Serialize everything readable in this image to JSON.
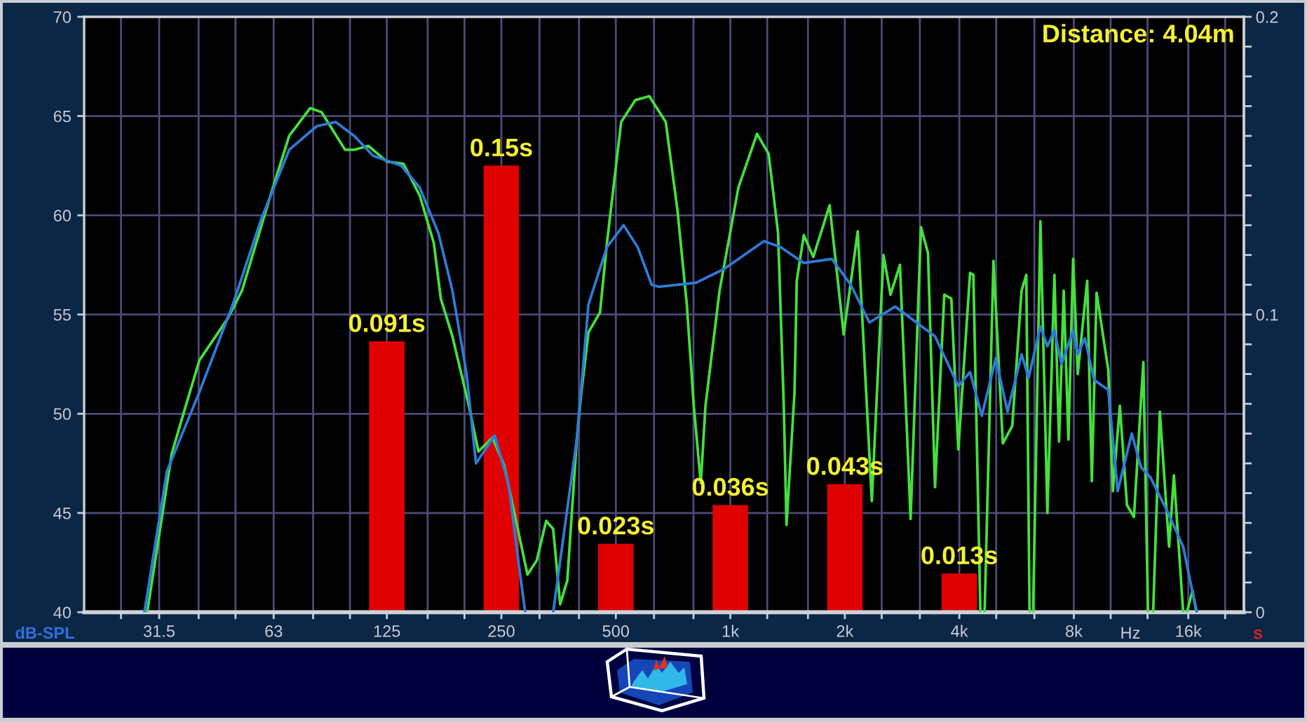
{
  "chart_data": {
    "type": "line",
    "annotations": [
      "Distance: 4.04m"
    ],
    "xlabel": "Hz",
    "ylabel": "dB-SPL",
    "y2label": "s",
    "log": "x",
    "xlim": [
      20,
      22400
    ],
    "xticks": [
      {
        "value": 25,
        "label": null
      },
      31.5,
      {
        "value": 40,
        "label": null
      },
      {
        "value": 50,
        "label": null
      },
      63,
      {
        "value": 80,
        "label": null
      },
      {
        "value": 100,
        "label": null
      },
      125,
      {
        "value": 160,
        "label": null
      },
      {
        "value": 200,
        "label": null
      },
      250,
      {
        "value": 315,
        "label": null
      },
      {
        "value": 400,
        "label": null
      },
      500,
      {
        "value": 630,
        "label": null
      },
      {
        "value": 800,
        "label": null
      },
      {
        "value": 1000,
        "label": "1k"
      },
      {
        "value": 1250,
        "label": null
      },
      {
        "value": 1600,
        "label": null
      },
      {
        "value": 2000,
        "label": "2k"
      },
      {
        "value": 2500,
        "label": null
      },
      {
        "value": 3150,
        "label": null
      },
      {
        "value": 4000,
        "label": "4k"
      },
      {
        "value": 5000,
        "label": null
      },
      {
        "value": 6300,
        "label": null
      },
      {
        "value": 8000,
        "label": "8k"
      },
      {
        "value": 10000,
        "label": null
      },
      {
        "value": 12500,
        "label": null
      },
      {
        "value": 16000,
        "label": "16k"
      },
      {
        "value": 20000,
        "label": null
      }
    ],
    "ylim": [
      40,
      70
    ],
    "yticks": [
      40,
      45,
      50,
      55,
      60,
      65,
      70
    ],
    "y2lim": [
      0,
      0.2
    ],
    "y2ticks": [
      0,
      {
        "value": 0.01,
        "label": null
      },
      {
        "value": 0.02,
        "label": null
      },
      {
        "value": 0.03,
        "label": null
      },
      {
        "value": 0.04,
        "label": null
      },
      {
        "value": 0.05,
        "label": null
      },
      {
        "value": 0.06,
        "label": null
      },
      {
        "value": 0.07,
        "label": null
      },
      {
        "value": 0.08,
        "label": null
      },
      {
        "value": 0.09,
        "label": null
      },
      0.1,
      {
        "value": 0.11,
        "label": null
      },
      {
        "value": 0.12,
        "label": null
      },
      {
        "value": 0.13,
        "label": null
      },
      {
        "value": 0.14,
        "label": null
      },
      {
        "value": 0.15,
        "label": null
      },
      {
        "value": 0.16,
        "label": null
      },
      {
        "value": 0.17,
        "label": null
      },
      {
        "value": 0.18,
        "label": null
      },
      {
        "value": 0.19,
        "label": null
      },
      0.2
    ],
    "grid": true,
    "series": [
      {
        "type": "bar",
        "axis": "y2",
        "color": "#e00000",
        "x": [
          125,
          250,
          500,
          1000,
          2000,
          4000
        ],
        "values": [
          0.091,
          0.15,
          0.023,
          0.036,
          0.043,
          0.013
        ],
        "value_labels": [
          "0.091s",
          "0.15s",
          "0.023s",
          "0.036s",
          "0.043s",
          "0.013s"
        ]
      },
      {
        "color": "#44e03c",
        "x": [
          29.3,
          34.0,
          37.0,
          40.2,
          47.7,
          52.0,
          61.8,
          69.2,
          78.6,
          84.2,
          97.1,
          102.6,
          111.7,
          125.2,
          138.2,
          152.5,
          166.1,
          173.3,
          185.9,
          205.4,
          217.6,
          236.9,
          254.3,
          269.2,
          292.8,
          309.7,
          328.0,
          342.1,
          357.0,
          372.7,
          394.7,
          405.9,
          423.6,
          454.2,
          473.8,
          516.4,
          562.3,
          612.2,
          676.3,
          725.6,
          768.4,
          801.4,
          836.3,
          860.3,
          936.8,
          1050,
          1175,
          1261,
          1335,
          1382,
          1405,
          1475,
          1495,
          1560,
          1652,
          1824,
          1986,
          2163,
          2355,
          2527,
          2637,
          2792,
          2978,
          3171,
          3309,
          3453,
          3652,
          3811,
          3976,
          4269,
          4355,
          4544,
          4600,
          4662,
          4918,
          5206,
          5512,
          5830,
          6000,
          6119,
          6172,
          6252,
          6535,
          6817,
          7113,
          7316,
          7526,
          7744,
          7967,
          8192,
          8674,
          8921,
          9182,
          9856,
          10134,
          10572,
          11035,
          11513,
          12186,
          12535,
          12717,
          12932,
          13465,
          14242,
          14662,
          15509,
          15590,
          15867,
          16417,
          16797
        ],
        "values": [
          40,
          48.0,
          50.4,
          52.7,
          54.8,
          56.2,
          61.0,
          64.0,
          65.4,
          65.2,
          63.3,
          63.3,
          63.5,
          62.7,
          62.6,
          61.0,
          58.6,
          55.8,
          53.9,
          50.4,
          48.1,
          48.8,
          47.4,
          45.2,
          41.9,
          42.6,
          44.6,
          44.2,
          40.4,
          41.6,
          48.7,
          51.1,
          54.1,
          55.1,
          58.6,
          64.7,
          65.8,
          66.0,
          64.7,
          60.3,
          55.5,
          50.4,
          46.5,
          50.4,
          56.2,
          61.4,
          64.1,
          63.1,
          59.1,
          50.4,
          44.4,
          51.1,
          56.7,
          59.0,
          57.9,
          60.5,
          54.0,
          59.2,
          45.6,
          58.0,
          56.0,
          57.5,
          44.7,
          59.4,
          58.1,
          46.3,
          56.0,
          55.8,
          48.2,
          57.1,
          57.0,
          40,
          null,
          40,
          57.7,
          48.5,
          49.4,
          56.2,
          57.0,
          40,
          null,
          40,
          59.7,
          45.0,
          57.0,
          48.6,
          56.2,
          48.7,
          57.8,
          52.0,
          56.7,
          46.6,
          56.1,
          52.2,
          46.1,
          50.4,
          45.4,
          44.8,
          52.6,
          40,
          null,
          40,
          50.1,
          43.3,
          46.9,
          40,
          null,
          40,
          41.1,
          40
        ]
      },
      {
        "color": "#2f7ad8",
        "x": [
          28.8,
          33.0,
          40.2,
          49.2,
          58.4,
          69.2,
          81.9,
          91.7,
          102.6,
          115.0,
          136.3,
          152.5,
          170.8,
          185.9,
          202.6,
          214.4,
          240.2,
          261.4,
          280.9,
          288.9,
          301.4,
          342.1,
          394.7,
          423.6,
          473.8,
          524.0,
          570.5,
          621.1,
          648.1,
          813.0,
          964.0,
          1226,
          1355,
          1560,
          1849,
          2073,
          2321,
          2712,
          3453,
          3976,
          4269,
          4582,
          4989,
          5355,
          5832,
          6083,
          6535,
          6817,
          7113,
          7424,
          7967,
          8192,
          8550,
          9050,
          9856,
          10433,
          11360,
          12018,
          12717,
          14242,
          15509,
          16417,
          16877
        ],
        "values": [
          40,
          47.1,
          51.1,
          55.5,
          59.8,
          63.3,
          64.5,
          64.7,
          64.0,
          63.0,
          62.5,
          61.4,
          59.1,
          56.2,
          52.0,
          47.5,
          48.9,
          46.4,
          41.7,
          40,
          null,
          40,
          48.7,
          55.5,
          58.4,
          59.5,
          58.4,
          56.5,
          56.4,
          56.6,
          57.3,
          58.7,
          58.4,
          57.6,
          57.8,
          56.5,
          54.6,
          55.4,
          53.9,
          51.4,
          52.1,
          49.9,
          52.8,
          50.1,
          53.0,
          51.8,
          54.4,
          53.4,
          54.2,
          52.5,
          54.2,
          53.0,
          53.8,
          51.7,
          51.2,
          46.1,
          49.0,
          47.3,
          46.8,
          44.9,
          43.3,
          41.0,
          40
        ]
      }
    ]
  }
}
